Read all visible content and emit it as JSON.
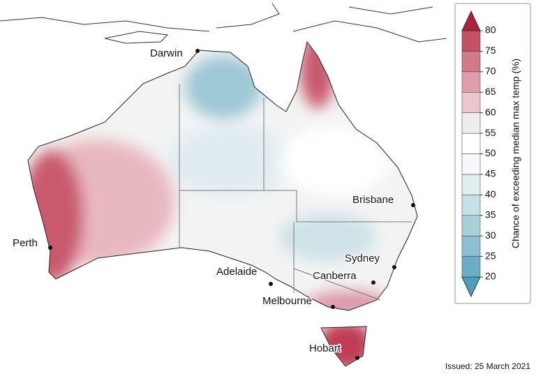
{
  "map": {
    "cities": [
      "Darwin",
      "Brisbane",
      "Perth",
      "Sydney",
      "Adelaide",
      "Canberra",
      "Melbourne",
      "Hobart"
    ],
    "legend": {
      "title": "Chance of exceeding median max temp (%)",
      "ticks": [
        20,
        25,
        30,
        35,
        40,
        45,
        50,
        55,
        60,
        65,
        70,
        75,
        80
      ],
      "colors": [
        "#4d9fbc",
        "#6badc6",
        "#8cbfd1",
        "#a9cfdb",
        "#c7dfe6",
        "#e2edf0",
        "#f6f8f9",
        "#ffffff",
        "#eeeded",
        "#ecc6cc",
        "#df9faa",
        "#d17a8a",
        "#c35266",
        "#ab223c"
      ]
    },
    "issued": "Issued: 25 March 2021"
  }
}
